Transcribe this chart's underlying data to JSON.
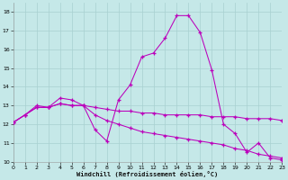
{
  "xlabel": "Windchill (Refroidissement éolien,°C)",
  "background_color": "#c5e8e8",
  "grid_color": "#a8d0d0",
  "line_color": "#bb00bb",
  "xlim": [
    0,
    23
  ],
  "ylim": [
    10,
    18.5
  ],
  "xticks": [
    0,
    1,
    2,
    3,
    4,
    5,
    6,
    7,
    8,
    9,
    10,
    11,
    12,
    13,
    14,
    15,
    16,
    17,
    18,
    19,
    20,
    21,
    22,
    23
  ],
  "yticks": [
    10,
    11,
    12,
    13,
    14,
    15,
    16,
    17,
    18
  ],
  "main_y": [
    12.1,
    12.5,
    13.0,
    12.9,
    13.4,
    13.3,
    13.0,
    11.7,
    11.1,
    13.3,
    14.1,
    15.6,
    15.8,
    16.6,
    17.8,
    17.8,
    16.9,
    14.9,
    12.0,
    11.5,
    10.5,
    11.0,
    10.2,
    10.1
  ],
  "trend1_y": [
    12.1,
    12.5,
    12.9,
    12.9,
    13.1,
    13.0,
    13.0,
    12.9,
    12.8,
    12.7,
    12.7,
    12.6,
    12.6,
    12.5,
    12.5,
    12.5,
    12.5,
    12.4,
    12.4,
    12.4,
    12.3,
    12.3,
    12.3,
    12.2
  ],
  "trend2_y": [
    12.1,
    12.5,
    12.9,
    12.9,
    13.1,
    13.0,
    13.0,
    12.5,
    12.2,
    12.0,
    11.8,
    11.6,
    11.5,
    11.4,
    11.3,
    11.2,
    11.1,
    11.0,
    10.9,
    10.7,
    10.6,
    10.4,
    10.3,
    10.2
  ]
}
